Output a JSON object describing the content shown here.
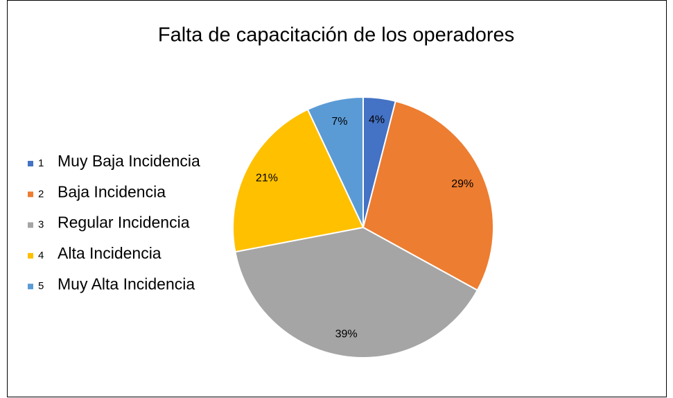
{
  "chart_data": {
    "type": "pie",
    "title": "Falta de capacitación de los operadores",
    "categories": [
      "1",
      "2",
      "3",
      "4",
      "5"
    ],
    "descriptions": [
      "Muy Baja Incidencia",
      "Baja Incidencia",
      "Regular Incidencia",
      "Alta Incidencia",
      "Muy Alta Incidencia"
    ],
    "values": [
      4,
      29,
      39,
      21,
      7
    ],
    "value_labels": [
      "4%",
      "29%",
      "39%",
      "21%",
      "7%"
    ],
    "colors": [
      "#4472c4",
      "#ed7d31",
      "#a5a5a5",
      "#ffc000",
      "#5b9bd5"
    ],
    "legend": "left"
  }
}
